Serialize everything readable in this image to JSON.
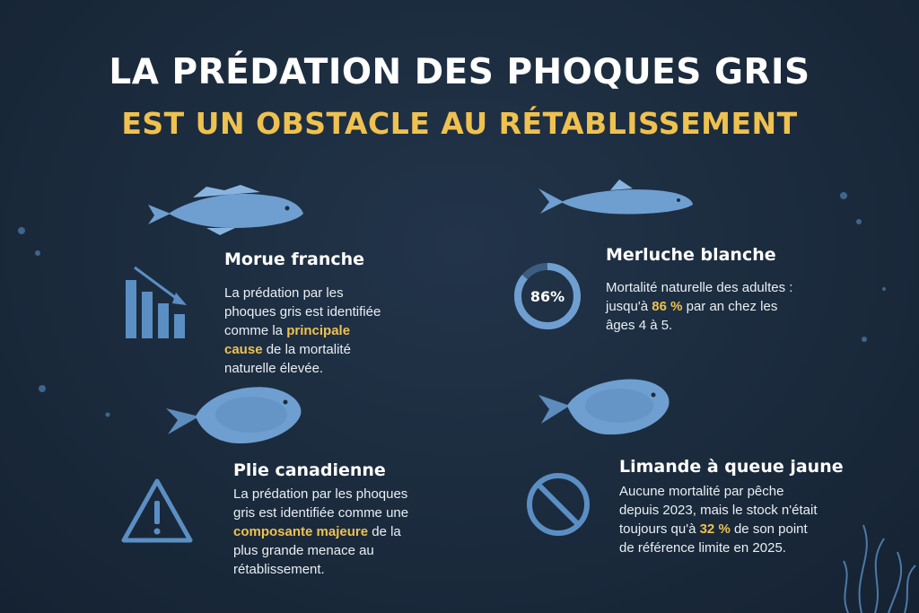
{
  "header": {
    "title": "LA PRÉDATION DES PHOQUES GRIS",
    "subtitle": "EST UN OBSTACLE AU RÉTABLISSEMENT"
  },
  "sections": [
    {
      "name": "Morue franche",
      "paragraph": [
        {
          "text": "La prédation par les phoques gris est identifiée comme la "
        },
        {
          "text": "principale cause",
          "highlight": true
        },
        {
          "text": " de la mortalité naturelle élevée."
        }
      ]
    },
    {
      "name": "Merluche blanche",
      "ring": {
        "value": 86,
        "label": "86%"
      },
      "paragraph": [
        {
          "text": "Mortalité naturelle des adultes : jusqu'à "
        },
        {
          "text": "86 %",
          "highlight": true
        },
        {
          "text": " par an chez les âges 4 à 5."
        }
      ]
    },
    {
      "name": "Plie canadienne",
      "paragraph": [
        {
          "text": "La prédation par les phoques gris est identifiée comme une "
        },
        {
          "text": "composante majeure",
          "highlight": true
        },
        {
          "text": " de la plus grande menace au rétablissement."
        }
      ]
    },
    {
      "name": "Limande à queue jaune",
      "paragraph": [
        {
          "text": "Aucune mortalité par pêche depuis 2023, mais le stock n'était toujours qu'à "
        },
        {
          "text": "32 %",
          "highlight": true
        },
        {
          "text": " de son point de référence limite en 2025."
        }
      ]
    }
  ]
}
